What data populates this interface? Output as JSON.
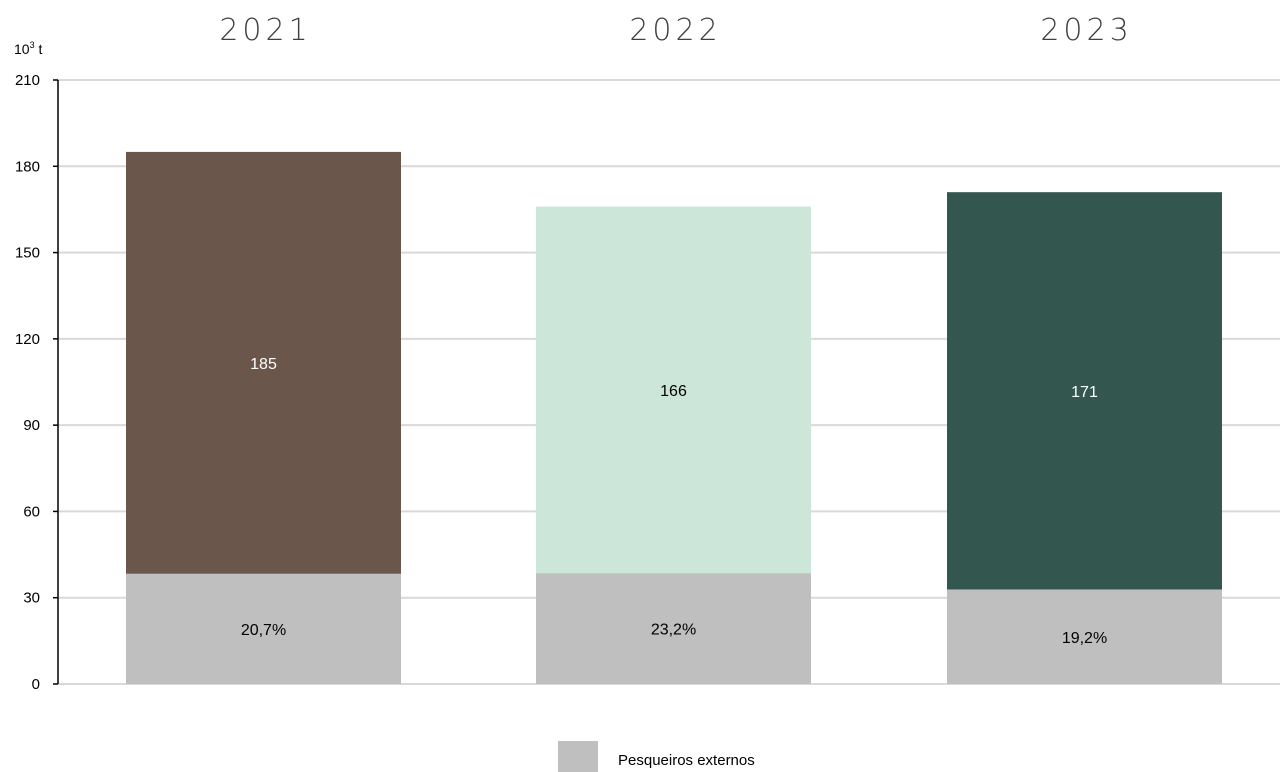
{
  "chart_data": {
    "type": "bar",
    "stacked": true,
    "unit_label": {
      "base": "10",
      "exponent": "3",
      "suffix": " t"
    },
    "categories": [
      "2021",
      "2022",
      "2023"
    ],
    "totals": [
      185,
      166,
      171
    ],
    "total_labels": [
      "185",
      "166",
      "171"
    ],
    "external_share_percent": [
      20.7,
      23.2,
      19.2
    ],
    "external_share_labels": [
      "20,7%",
      "23,2%",
      "19,2%"
    ],
    "ylim": [
      0,
      210
    ],
    "yticks": [
      0,
      30,
      60,
      90,
      120,
      150,
      180,
      210
    ],
    "ytick_labels": [
      "0",
      "30",
      "60",
      "90",
      "120",
      "150",
      "180",
      "210"
    ],
    "grid": true,
    "legend": {
      "position": "bottom-center",
      "entries": [
        {
          "name": "Pesqueiros externos",
          "color": "#bfbfbf"
        }
      ]
    },
    "colors": {
      "bars": [
        "#6b564b",
        "#cce6da",
        "#33574f"
      ],
      "external": "#bfbfbf",
      "total_label_text": [
        "#ffffff",
        "#000000",
        "#ffffff"
      ],
      "year_title": "#404040",
      "grid": "#d9d9d9",
      "axis": "#000000"
    }
  }
}
